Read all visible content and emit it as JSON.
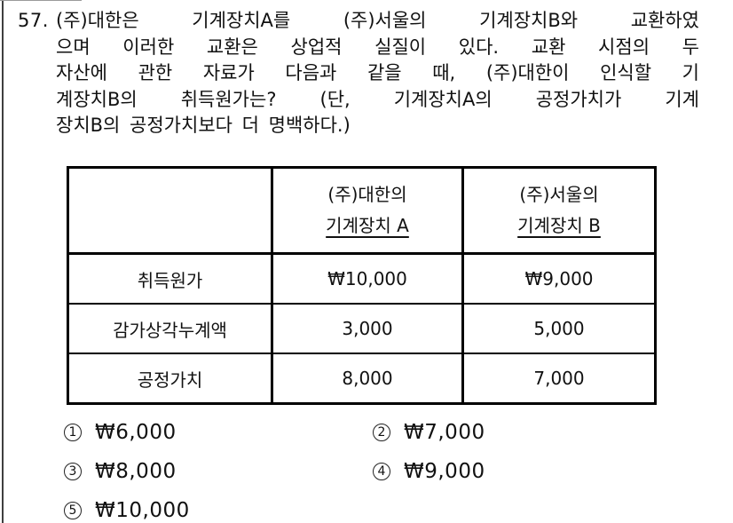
{
  "question": {
    "number": "57.",
    "lines": [
      "(주)대한은 기계장치A를 (주)서울의 기계장치B와 교환하였",
      "으며 이러한 교환은 상업적 실질이 있다. 교환 시점의 두",
      "자산에 관한 자료가 다음과 같을 때, (주)대한이 인식할 기",
      "계장치B의 취득원가는? (단, 기계장치A의 공정가치가 기계",
      "장치B의 공정가치보다 더 명백하다.)"
    ]
  },
  "table": {
    "columns": [
      {
        "line1": "(주)대한의",
        "line2": "기계장치 A"
      },
      {
        "line1": "(주)서울의",
        "line2": "기계장치 B"
      }
    ],
    "rows": [
      {
        "label": "취득원가",
        "machine_a": "₩10,000",
        "machine_b": "₩9,000"
      },
      {
        "label": "감가상각누계액",
        "machine_a": "3,000",
        "machine_b": "5,000"
      },
      {
        "label": "공정가치",
        "machine_a": "8,000",
        "machine_b": "7,000"
      }
    ]
  },
  "options": [
    {
      "number": "1",
      "amount": "₩6,000"
    },
    {
      "number": "2",
      "amount": "₩7,000"
    },
    {
      "number": "3",
      "amount": "₩8,000"
    },
    {
      "number": "4",
      "amount": "₩9,000"
    },
    {
      "number": "5",
      "amount": "₩10,000"
    }
  ]
}
